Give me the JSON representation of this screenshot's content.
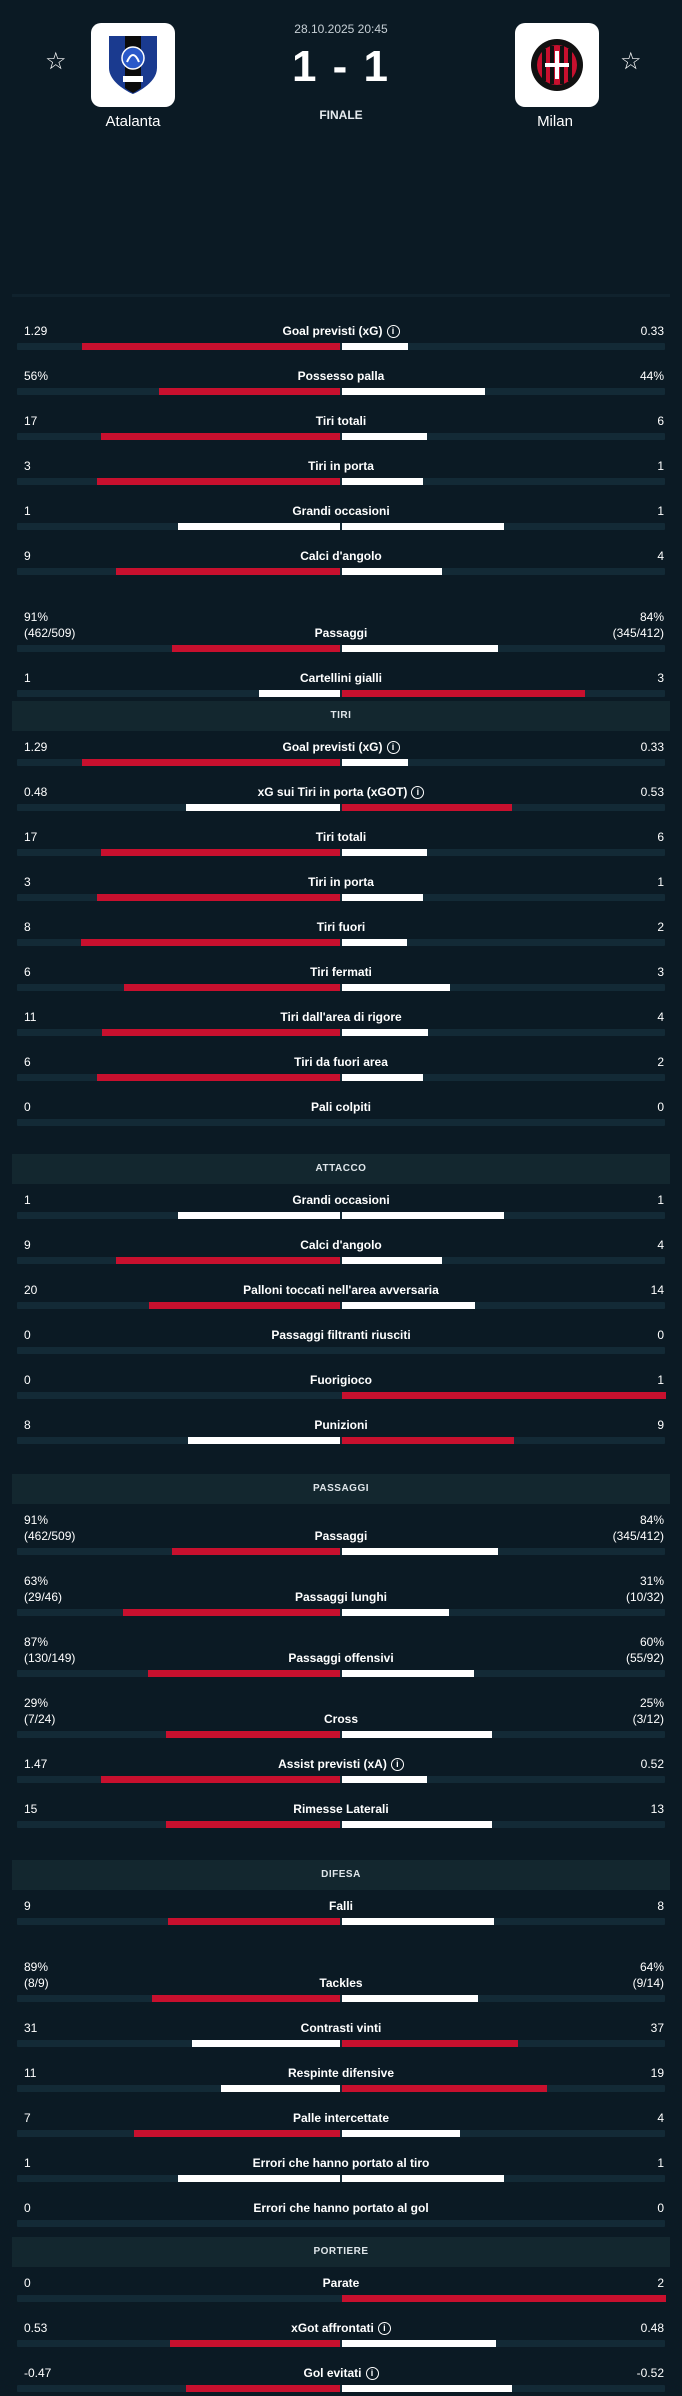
{
  "match": {
    "datetime": "28.10.2025 20:45",
    "score": "1 - 1",
    "status": "FINALE",
    "home": {
      "name": "Atalanta"
    },
    "away": {
      "name": "Milan"
    }
  },
  "colors": {
    "home_bar": "#c8102e",
    "away_bar": "#ffffff",
    "home_bar_alt": "#ffffff",
    "away_bar_alt": "#c8102e"
  },
  "sections": [
    {
      "title": "",
      "stats": [
        {
          "label": "Goal previsti (xG)",
          "info": true,
          "home": "1.29",
          "away": "0.33",
          "hv": 1.29,
          "av": 0.33
        },
        {
          "label": "Possesso palla",
          "home": "56%",
          "away": "44%",
          "hv": 56,
          "av": 44
        },
        {
          "label": "Tiri totali",
          "home": "17",
          "away": "6",
          "hv": 17,
          "av": 6
        },
        {
          "label": "Tiri in porta",
          "home": "3",
          "away": "1",
          "hv": 3,
          "av": 1
        },
        {
          "label": "Grandi occasioni",
          "home": "1",
          "away": "1",
          "hv": 1,
          "av": 1
        },
        {
          "label": "Calci d'angolo",
          "home": "9",
          "away": "4",
          "hv": 9,
          "av": 4
        },
        {
          "label": "Passaggi",
          "home": "91%",
          "home_sub": "(462/509)",
          "away": "84%",
          "away_sub": "(345/412)",
          "hv": 91,
          "av": 84
        },
        {
          "label": "Cartellini gialli",
          "home": "1",
          "away": "3",
          "hv": 1,
          "av": 3
        }
      ]
    },
    {
      "title": "TIRI",
      "stats": [
        {
          "label": "Goal previsti (xG)",
          "info": true,
          "home": "1.29",
          "away": "0.33",
          "hv": 1.29,
          "av": 0.33
        },
        {
          "label": "xG sui Tiri in porta (xGOT)",
          "info": true,
          "home": "0.48",
          "away": "0.53",
          "hv": 0.48,
          "av": 0.53
        },
        {
          "label": "Tiri totali",
          "home": "17",
          "away": "6",
          "hv": 17,
          "av": 6
        },
        {
          "label": "Tiri in porta",
          "home": "3",
          "away": "1",
          "hv": 3,
          "av": 1
        },
        {
          "label": "Tiri fuori",
          "home": "8",
          "away": "2",
          "hv": 8,
          "av": 2
        },
        {
          "label": "Tiri fermati",
          "home": "6",
          "away": "3",
          "hv": 6,
          "av": 3
        },
        {
          "label": "Tiri dall'area di rigore",
          "home": "11",
          "away": "4",
          "hv": 11,
          "av": 4
        },
        {
          "label": "Tiri da fuori area",
          "home": "6",
          "away": "2",
          "hv": 6,
          "av": 2
        },
        {
          "label": "Pali colpiti",
          "home": "0",
          "away": "0",
          "hv": 0,
          "av": 0
        }
      ]
    },
    {
      "title": "ATTACCO",
      "stats": [
        {
          "label": "Grandi occasioni",
          "home": "1",
          "away": "1",
          "hv": 1,
          "av": 1
        },
        {
          "label": "Calci d'angolo",
          "home": "9",
          "away": "4",
          "hv": 9,
          "av": 4
        },
        {
          "label": "Palloni toccati nell'area avversaria",
          "home": "20",
          "away": "14",
          "hv": 20,
          "av": 14
        },
        {
          "label": "Passaggi filtranti riusciti",
          "home": "0",
          "away": "0",
          "hv": 0,
          "av": 0
        },
        {
          "label": "Fuorigioco",
          "home": "0",
          "away": "1",
          "hv": 0,
          "av": 1
        },
        {
          "label": "Punizioni",
          "home": "8",
          "away": "9",
          "hv": 8,
          "av": 9
        }
      ]
    },
    {
      "title": "PASSAGGI",
      "stats": [
        {
          "label": "Passaggi",
          "home": "91%",
          "home_sub": "(462/509)",
          "away": "84%",
          "away_sub": "(345/412)",
          "hv": 91,
          "av": 84
        },
        {
          "label": "Passaggi lunghi",
          "home": "63%",
          "home_sub": "(29/46)",
          "away": "31%",
          "away_sub": "(10/32)",
          "hv": 63,
          "av": 31
        },
        {
          "label": "Passaggi offensivi",
          "home": "87%",
          "home_sub": "(130/149)",
          "away": "60%",
          "away_sub": "(55/92)",
          "hv": 87,
          "av": 60
        },
        {
          "label": "Cross",
          "home": "29%",
          "home_sub": "(7/24)",
          "away": "25%",
          "away_sub": "(3/12)",
          "hv": 29,
          "av": 25
        },
        {
          "label": "Assist previsti (xA)",
          "info": true,
          "home": "1.47",
          "away": "0.52",
          "hv": 1.47,
          "av": 0.52
        },
        {
          "label": "Rimesse Laterali",
          "home": "15",
          "away": "13",
          "hv": 15,
          "av": 13
        }
      ]
    },
    {
      "title": "DIFESA",
      "stats": [
        {
          "label": "Falli",
          "home": "9",
          "away": "8",
          "hv": 9,
          "av": 8
        },
        {
          "label": "Tackles",
          "home": "89%",
          "home_sub": "(8/9)",
          "away": "64%",
          "away_sub": "(9/14)",
          "hv": 89,
          "av": 64
        },
        {
          "label": "Contrasti vinti",
          "home": "31",
          "away": "37",
          "hv": 31,
          "av": 37
        },
        {
          "label": "Respinte difensive",
          "home": "11",
          "away": "19",
          "hv": 11,
          "av": 19
        },
        {
          "label": "Palle intercettate",
          "home": "7",
          "away": "4",
          "hv": 7,
          "av": 4
        },
        {
          "label": "Errori che hanno portato al tiro",
          "home": "1",
          "away": "1",
          "hv": 1,
          "av": 1
        },
        {
          "label": "Errori che hanno portato al gol",
          "home": "0",
          "away": "0",
          "hv": 0,
          "av": 0
        }
      ]
    },
    {
      "title": "PORTIERE",
      "stats": [
        {
          "label": "Parate",
          "home": "0",
          "away": "2",
          "hv": 0,
          "av": 2
        },
        {
          "label": "xGot affrontati",
          "info": true,
          "home": "0.53",
          "away": "0.48",
          "hv": 0.53,
          "av": 0.48
        },
        {
          "label": "Gol evitati",
          "info": true,
          "home": "-0.47",
          "away": "-0.52",
          "hv": -0.47,
          "av": -0.52
        }
      ]
    }
  ]
}
